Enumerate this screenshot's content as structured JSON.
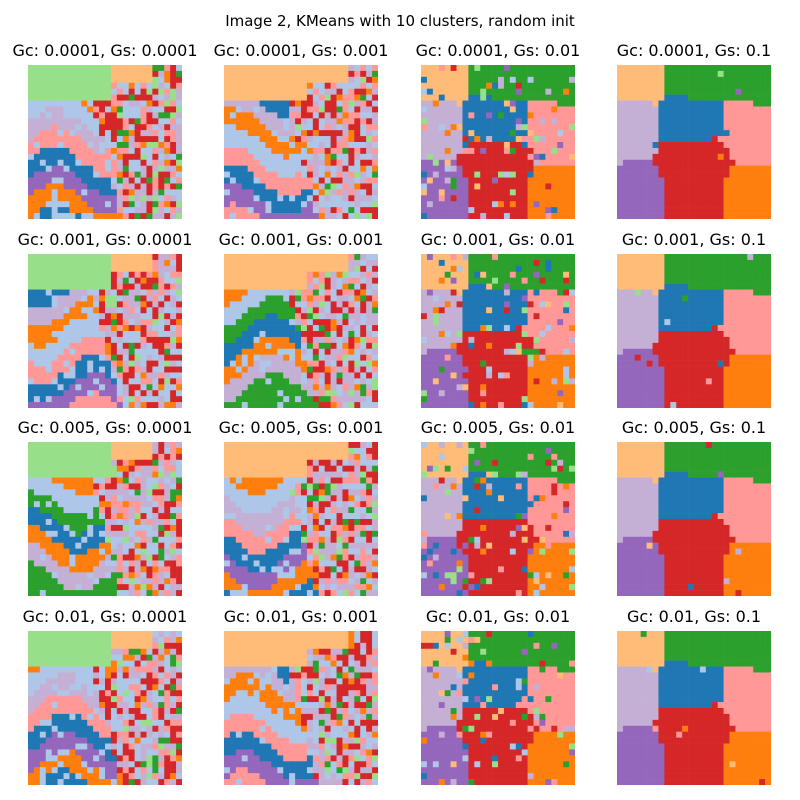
{
  "figure": {
    "suptitle": "Image 2, KMeans with 10 clusters, random init"
  },
  "palette": [
    "#1f77b4",
    "#aec7e8",
    "#ff7f0e",
    "#ffbb78",
    "#2ca02c",
    "#98df8a",
    "#d62728",
    "#ff9896",
    "#9467bd",
    "#c5b0d5"
  ],
  "chart_data": {
    "type": "heatmap",
    "title": "Image 2, KMeans with 10 clusters, random init",
    "description_fields": {
      "method": "KMeans",
      "n_clusters": 10,
      "init": "random"
    },
    "rows_param": "Gc",
    "cols_param": "Gs",
    "Gc_values": [
      "0.0001",
      "0.001",
      "0.005",
      "0.01"
    ],
    "Gs_values": [
      "0.0001",
      "0.001",
      "0.01",
      "0.1"
    ],
    "panels": [
      {
        "title": "Gc: 0.0001, Gs: 0.0001",
        "Gc": 0.0001,
        "Gs": 0.0001
      },
      {
        "title": "Gc: 0.0001, Gs: 0.001",
        "Gc": 0.0001,
        "Gs": 0.001
      },
      {
        "title": "Gc: 0.0001, Gs: 0.01",
        "Gc": 0.0001,
        "Gs": 0.01
      },
      {
        "title": "Gc: 0.0001, Gs: 0.1",
        "Gc": 0.0001,
        "Gs": 0.1
      },
      {
        "title": "Gc: 0.001, Gs: 0.0001",
        "Gc": 0.001,
        "Gs": 0.0001
      },
      {
        "title": "Gc: 0.001, Gs: 0.001",
        "Gc": 0.001,
        "Gs": 0.001
      },
      {
        "title": "Gc: 0.001, Gs: 0.01",
        "Gc": 0.001,
        "Gs": 0.01
      },
      {
        "title": "Gc: 0.001, Gs: 0.1",
        "Gc": 0.001,
        "Gs": 0.1
      },
      {
        "title": "Gc: 0.005, Gs: 0.0001",
        "Gc": 0.005,
        "Gs": 0.0001
      },
      {
        "title": "Gc: 0.005, Gs: 0.001",
        "Gc": 0.005,
        "Gs": 0.001
      },
      {
        "title": "Gc: 0.005, Gs: 0.01",
        "Gc": 0.005,
        "Gs": 0.01
      },
      {
        "title": "Gc: 0.005, Gs: 0.1",
        "Gc": 0.005,
        "Gs": 0.1
      },
      {
        "title": "Gc: 0.01, Gs: 0.0001",
        "Gc": 0.01,
        "Gs": 0.0001
      },
      {
        "title": "Gc: 0.01, Gs: 0.001",
        "Gc": 0.01,
        "Gs": 0.001
      },
      {
        "title": "Gc: 0.01, Gs: 0.01",
        "Gc": 0.01,
        "Gs": 0.01
      },
      {
        "title": "Gc: 0.01, Gs: 0.1",
        "Gc": 0.01,
        "Gs": 0.1
      }
    ]
  }
}
